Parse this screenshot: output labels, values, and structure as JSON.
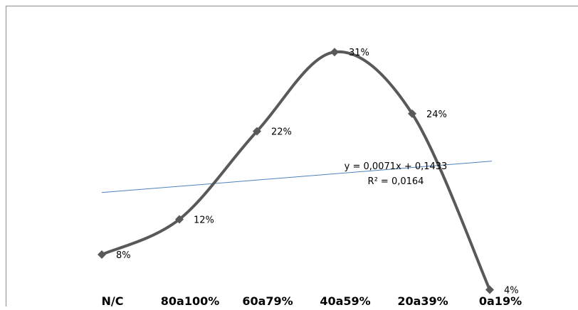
{
  "chart_data": {
    "type": "line",
    "categories": [
      "N/C",
      "80a100%",
      "60a79%",
      "40a59%",
      "20a39%",
      "0a19%"
    ],
    "series": [
      {
        "values": [
          0.08,
          0.12,
          0.22,
          0.31,
          0.24,
          0.04
        ],
        "labels": [
          "8%",
          "12%",
          "22%",
          "31%",
          "24%",
          "4%"
        ],
        "color": "#595959",
        "marker": "diamond",
        "smooth": true
      }
    ],
    "trendline": {
      "type": "linear",
      "slope": 0.0071,
      "intercept": 0.1433,
      "color": "#4f81bd",
      "equation_label": "y = 0,0071x + 0,1433",
      "r2_label": "R² = 0,0164"
    },
    "title": "",
    "xlabel": "",
    "ylabel": "",
    "ylim": [
      0,
      0.35
    ],
    "grid": false,
    "legend": "none"
  }
}
